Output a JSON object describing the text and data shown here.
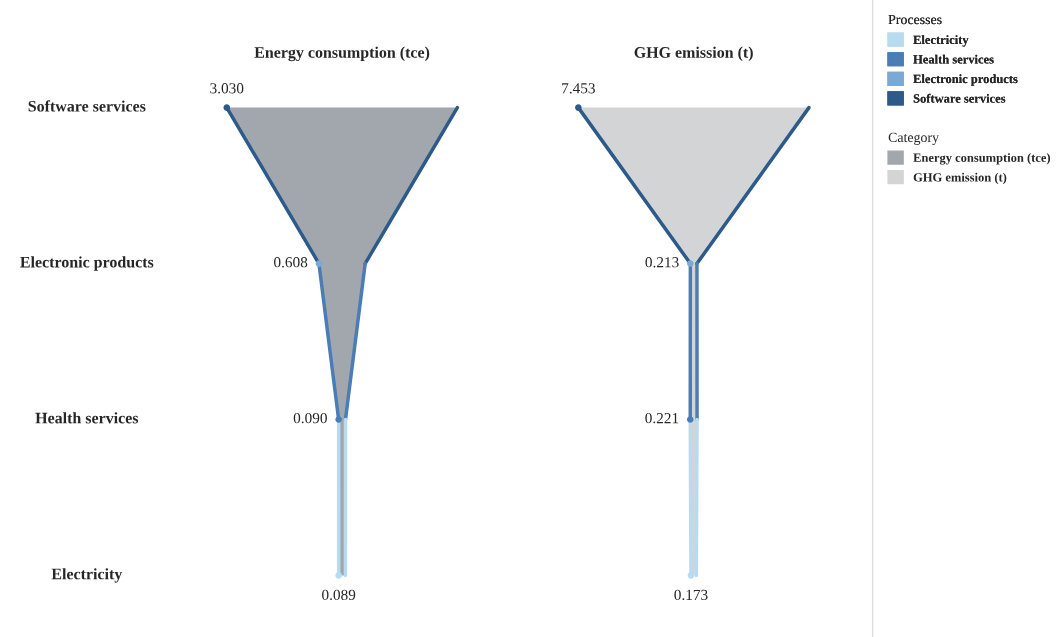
{
  "chart_data": [
    {
      "type": "other",
      "title": "Energy consumption (tce)",
      "categories": [
        "Software services",
        "Electronic products",
        "Health services",
        "Electricity"
      ],
      "colors": [
        "#2c5a8a",
        "#7aaad4",
        "#4a7db5",
        "#b7dcf0"
      ],
      "legend_title": "Processes",
      "series": [
        {
          "name": "Energy consumption (tce)",
          "color": "#a2a6ad",
          "values": [
            3.03,
            0.608,
            0.09,
            0.089
          ],
          "value_labels": [
            "3.030",
            "0.608",
            "0.090",
            "0.089"
          ]
        }
      ]
    },
    {
      "type": "other",
      "title": "GHG emission (t)",
      "colors": [
        "#2c5a8a",
        "#7aaad4",
        "#4a7db5",
        "#b7dcf0"
      ],
      "legend_title": "Category",
      "series": [
        {
          "name": "GHG emission (t)",
          "color": "#d3d4d6",
          "values": [
            7.453,
            0.213,
            0.221,
            0.173
          ],
          "value_labels": [
            "7.453",
            "0.213",
            "0.221",
            "0.173"
          ]
        }
      ]
    }
  ]
}
